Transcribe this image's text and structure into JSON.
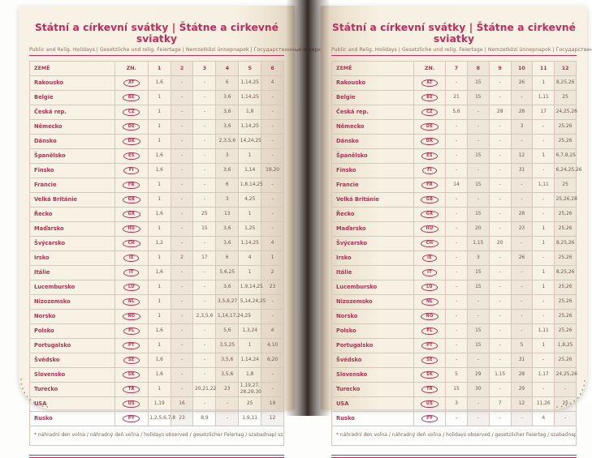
{
  "page_title": "Státní a církevní svátky | Štátne a cirkevné sviatky",
  "subtitle": "Public and Relig. Holidays | Gesetzliche und relig. Feiertage | Nemzetközi ünnepnapok | Государственные и церковные праздники",
  "footnote": "* náhradní den volna / náhradný deň voľna / holidays observed / gesetzlicher Feiertag / szabadnapi szabadság / выходной день",
  "colors": {
    "accent": "#c5295e",
    "crimson": "#b23156",
    "page": "#f7f1e3"
  },
  "tables": {
    "left": {
      "columns": [
        "ZEMĚ",
        "ZN.",
        "1",
        "2",
        "3",
        "4",
        "5",
        "6"
      ]
    },
    "right": {
      "columns": [
        "ZEMĚ",
        "ZN.",
        "7",
        "8",
        "9",
        "10",
        "11",
        "12"
      ]
    }
  },
  "countries": [
    {
      "name": "Rakousko",
      "code": "AT",
      "left": [
        "1,6",
        "-",
        "-",
        "6",
        "1,14,25",
        "4"
      ],
      "right": [
        "-",
        "15",
        "-",
        "26",
        "1",
        "8,25,26"
      ]
    },
    {
      "name": "Belgie",
      "code": "BE",
      "left": [
        "1",
        "-",
        "-",
        "3,6",
        "1,14,25",
        "-"
      ],
      "right": [
        "21",
        "15",
        "-",
        "-",
        "1,11",
        "25"
      ]
    },
    {
      "name": "Česká rep.",
      "code": "CZ",
      "left": [
        "1",
        "-",
        "-",
        "3,6",
        "1,8",
        "-"
      ],
      "right": [
        "5,6",
        "-",
        "28",
        "28",
        "17",
        "24,25,26"
      ]
    },
    {
      "name": "Německo",
      "code": "DE",
      "left": [
        "1",
        "-",
        "-",
        "3,6",
        "1,14,25",
        "-"
      ],
      "right": [
        "-",
        "-",
        "-",
        "3",
        "-",
        "25,26"
      ]
    },
    {
      "name": "Dánsko",
      "code": "DK",
      "left": [
        "1",
        "-",
        "-",
        "2,3,5,6",
        "14,24,25",
        "-"
      ],
      "right": [
        "-",
        "-",
        "-",
        "-",
        "-",
        "25,26"
      ]
    },
    {
      "name": "Španělsko",
      "code": "ES",
      "left": [
        "1,6",
        "-",
        "-",
        "3",
        "1",
        "-"
      ],
      "right": [
        "-",
        "15",
        "-",
        "12",
        "1",
        "6,7,8,25"
      ]
    },
    {
      "name": "Finsko",
      "code": "FI",
      "left": [
        "1,6",
        "-",
        "-",
        "3,6",
        "1,14",
        "19,20"
      ],
      "right": [
        "-",
        "-",
        "-",
        "31",
        "-",
        "6,24,25,26"
      ]
    },
    {
      "name": "Francie",
      "code": "FR",
      "left": [
        "1",
        "-",
        "-",
        "6",
        "1,8,14,25",
        "-"
      ],
      "right": [
        "14",
        "15",
        "-",
        "-",
        "1,11",
        "25"
      ]
    },
    {
      "name": "Velká Británie",
      "code": "GB",
      "left": [
        "1",
        "-",
        "-",
        "3",
        "4,25",
        "-"
      ],
      "right": [
        "-",
        "-",
        "-",
        "-",
        "-",
        "25,26,28"
      ]
    },
    {
      "name": "Řecko",
      "code": "GR",
      "left": [
        "1,6",
        "-",
        "25",
        "13",
        "1",
        "-"
      ],
      "right": [
        "-",
        "15",
        "-",
        "28",
        "-",
        "25,26"
      ]
    },
    {
      "name": "Maďarsko",
      "code": "HU",
      "left": [
        "1",
        "-",
        "15",
        "3,6",
        "1,25",
        "-"
      ],
      "right": [
        "-",
        "20",
        "-",
        "23",
        "1",
        "25,26"
      ]
    },
    {
      "name": "Švýcarsko",
      "code": "CH",
      "left": [
        "1,2",
        "-",
        "-",
        "3,6",
        "1,14,25",
        "4"
      ],
      "right": [
        "-",
        "1,15",
        "20",
        "-",
        "1",
        "8,25,26"
      ]
    },
    {
      "name": "Irsko",
      "code": "IE",
      "left": [
        "1",
        "2",
        "17",
        "6",
        "4",
        "1"
      ],
      "right": [
        "-",
        "3",
        "-",
        "26",
        "-",
        "25,26"
      ]
    },
    {
      "name": "Itálie",
      "code": "IT",
      "left": [
        "1,6",
        "-",
        "-",
        "5,6,25",
        "1",
        "2"
      ],
      "right": [
        "-",
        "15",
        "-",
        "-",
        "1",
        "8,25,26"
      ]
    },
    {
      "name": "Lucembursko",
      "code": "LU",
      "left": [
        "1",
        "-",
        "-",
        "3,6",
        "1,9,14,25",
        "23"
      ],
      "right": [
        "-",
        "15",
        "-",
        "-",
        "1",
        "25,26"
      ]
    },
    {
      "name": "Nizozemsko",
      "code": "NL",
      "left": [
        "1",
        "-",
        "-",
        "3,5,6,27",
        "5,14,24,25",
        "-"
      ],
      "right": [
        "-",
        "-",
        "-",
        "-",
        "-",
        "25,26"
      ]
    },
    {
      "name": "Norsko",
      "code": "NO",
      "left": [
        "1",
        "-",
        "2,3,5,6",
        "1,14,17,24,25",
        "-",
        "-"
      ],
      "right": [
        "-",
        "-",
        "-",
        "-",
        "-",
        "25,26"
      ]
    },
    {
      "name": "Polsko",
      "code": "PL",
      "left": [
        "1,6",
        "-",
        "-",
        "5,6",
        "1,3,24",
        "4"
      ],
      "right": [
        "-",
        "15",
        "-",
        "-",
        "1,11",
        "25,26"
      ]
    },
    {
      "name": "Portugalsko",
      "code": "PT",
      "left": [
        "1",
        "-",
        "-",
        "3,5,25",
        "1",
        "4,10"
      ],
      "right": [
        "-",
        "15",
        "-",
        "5",
        "1",
        "1,8,25"
      ]
    },
    {
      "name": "Švédsko",
      "code": "SE",
      "left": [
        "1,6",
        "-",
        "-",
        "3,5,6",
        "1,14,24",
        "6,20"
      ],
      "right": [
        "-",
        "-",
        "-",
        "31",
        "-",
        "25,26"
      ]
    },
    {
      "name": "Slovensko",
      "code": "SK",
      "left": [
        "1,6",
        "-",
        "-",
        "3,5,6",
        "1,8",
        "-"
      ],
      "right": [
        "5",
        "29",
        "1,15",
        "28",
        "1,17",
        "24,25,26"
      ]
    },
    {
      "name": "Turecko",
      "code": "TR",
      "left": [
        "1",
        "-",
        "20,21,22",
        "23",
        "1,19,27, 28,29,30",
        "-"
      ],
      "right": [
        "15",
        "30",
        "-",
        "29",
        "-",
        "-"
      ]
    },
    {
      "name": "USA",
      "code": "US",
      "left": [
        "1,19",
        "16",
        "-",
        "-",
        "25",
        "19"
      ],
      "right": [
        "3",
        "-",
        "7",
        "12",
        "11,26",
        "25"
      ]
    },
    {
      "name": "Rusko",
      "code": "PY",
      "left": [
        "1,2,5,6,7,8",
        "23",
        "8,9",
        "-",
        "1,9,11",
        "12"
      ],
      "right": [
        "-",
        "-",
        "-",
        "-",
        "4",
        "-"
      ]
    }
  ]
}
